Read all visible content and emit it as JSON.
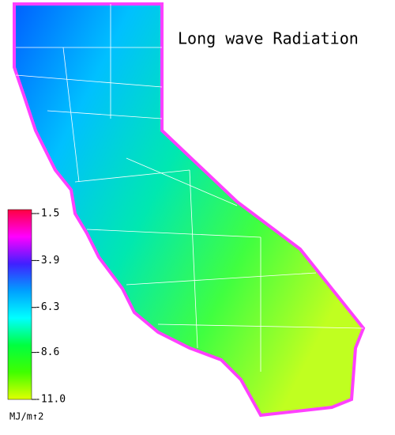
{
  "title": "Long wave Radiation",
  "colorbar": {
    "unit": "MJ/m↑2",
    "lim": [
      -1.5,
      {
        "value": -11,
        "label": "-11.0"
      }
    ],
    "ticks": [
      -1.5,
      -3.9,
      -6.3,
      -8.6,
      {
        "value": -11,
        "label": "-11.0"
      }
    ],
    "colors": [
      "#ff0040",
      "#ff00ff",
      "#4020ff",
      "#00a0ff",
      "#00ffff",
      "#00ff40",
      "#40ff00",
      "#e0ff00"
    ]
  }
}
